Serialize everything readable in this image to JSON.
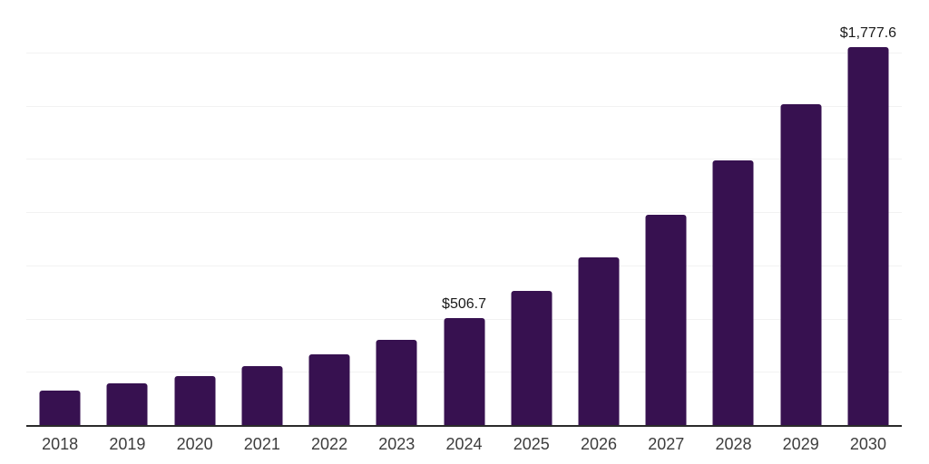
{
  "chart_data": {
    "type": "bar",
    "categories": [
      "2018",
      "2019",
      "2020",
      "2021",
      "2022",
      "2023",
      "2024",
      "2025",
      "2026",
      "2027",
      "2028",
      "2029",
      "2030"
    ],
    "values": [
      168,
      202,
      233,
      279,
      337,
      406,
      506.7,
      634,
      790,
      990,
      1246,
      1511,
      1777.6
    ],
    "data_labels": {
      "2024": "$506.7",
      "2030": "$1,777.6"
    },
    "title": "",
    "xlabel": "",
    "ylabel": "",
    "ylim": [
      0,
      2000
    ],
    "grid_interval": 250,
    "grid": true,
    "legend": false,
    "colors": {
      "bar": "#371150",
      "gridline": "#f2f2f2",
      "axis_line": "#2b2b2b",
      "tick_label": "#3d3d3d",
      "data_label": "#1a1a1a",
      "background": "#ffffff"
    }
  }
}
